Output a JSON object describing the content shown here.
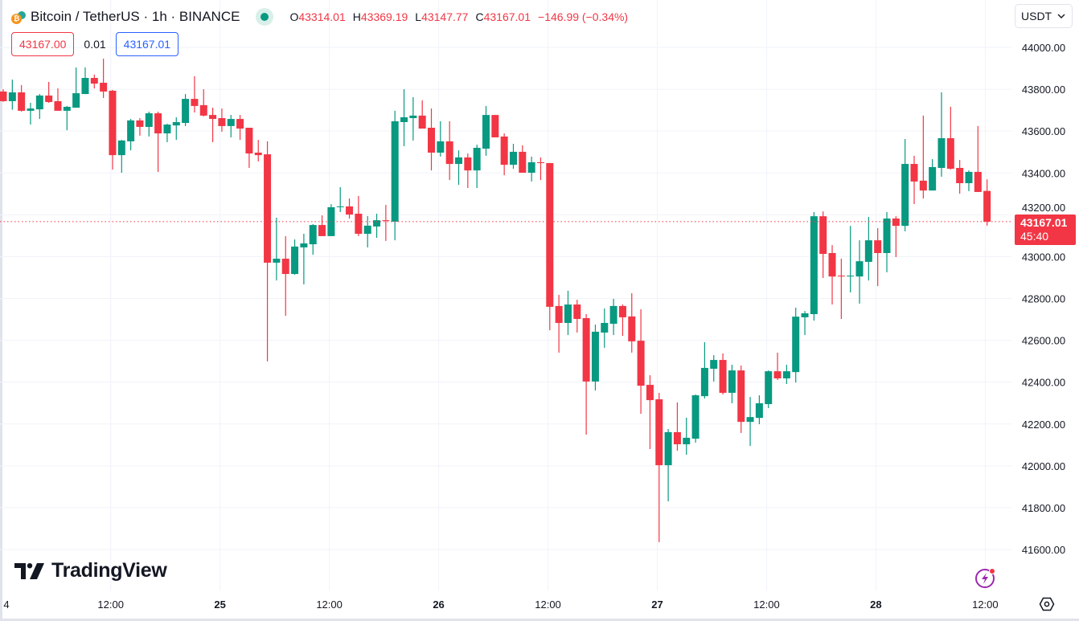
{
  "header": {
    "title": "Bitcoin / TetherUS · 1h · BINANCE",
    "ohlc": [
      {
        "key": "O",
        "value": "43314.01"
      },
      {
        "key": "H",
        "value": "43369.19"
      },
      {
        "key": "L",
        "value": "43147.77"
      },
      {
        "key": "C",
        "value": "43167.01"
      }
    ],
    "change": "−146.99 (−0.34%)"
  },
  "quote": {
    "sell": "43167.00",
    "spread": "0.01",
    "buy": "43167.01"
  },
  "currency_button": {
    "label": "USDT"
  },
  "current_price": {
    "value": "43167.01",
    "countdown": "45:40"
  },
  "branding": {
    "logo_text": "TradingView"
  },
  "colors": {
    "up": "#089981",
    "down": "#f23645",
    "grid": "#f0f3fa",
    "accent": "#2962ff"
  },
  "chart_data": {
    "type": "candlestick",
    "symbol": "BTCUSDT",
    "interval": "1h",
    "ylim": [
      41500,
      44120
    ],
    "y_ticks": [
      "44000.00",
      "43800.00",
      "43600.00",
      "43400.00",
      "43200.00",
      "43000.00",
      "42800.00",
      "42600.00",
      "42400.00",
      "42200.00",
      "42000.00",
      "41800.00",
      "41600.00"
    ],
    "x_ticks": [
      {
        "label": "4",
        "index": 0.3,
        "bold": false
      },
      {
        "label": "12:00",
        "index": 11.8,
        "bold": false
      },
      {
        "label": "25",
        "index": 23.8,
        "bold": true
      },
      {
        "label": "12:00",
        "index": 35.8,
        "bold": false
      },
      {
        "label": "26",
        "index": 47.8,
        "bold": true
      },
      {
        "label": "12:00",
        "index": 59.8,
        "bold": false
      },
      {
        "label": "27",
        "index": 71.8,
        "bold": true
      },
      {
        "label": "12:00",
        "index": 83.8,
        "bold": false
      },
      {
        "label": "28",
        "index": 95.8,
        "bold": true
      },
      {
        "label": "12:00",
        "index": 107.8,
        "bold": false
      }
    ],
    "candles_ohlc": [
      [
        43789,
        43800,
        43740,
        43743
      ],
      [
        43743,
        43846,
        43702,
        43785
      ],
      [
        43785,
        43820,
        43693,
        43697
      ],
      [
        43697,
        43735,
        43631,
        43708
      ],
      [
        43704,
        43777,
        43658,
        43770
      ],
      [
        43770,
        43835,
        43735,
        43739
      ],
      [
        43743,
        43804,
        43697,
        43697
      ],
      [
        43697,
        43720,
        43604,
        43716
      ],
      [
        43712,
        43904,
        43712,
        43781
      ],
      [
        43777,
        43904,
        43777,
        43854
      ],
      [
        43854,
        43870,
        43804,
        43827
      ],
      [
        43831,
        43946,
        43758,
        43789
      ],
      [
        43793,
        43797,
        43416,
        43485
      ],
      [
        43485,
        43558,
        43401,
        43555
      ],
      [
        43551,
        43658,
        43508,
        43651
      ],
      [
        43651,
        43662,
        43578,
        43620
      ],
      [
        43620,
        43693,
        43574,
        43685
      ],
      [
        43685,
        43693,
        43405,
        43589
      ],
      [
        43589,
        43635,
        43547,
        43631
      ],
      [
        43627,
        43666,
        43558,
        43643
      ],
      [
        43639,
        43777,
        43624,
        43754
      ],
      [
        43754,
        43862,
        43689,
        43720
      ],
      [
        43724,
        43800,
        43670,
        43674
      ],
      [
        43677,
        43712,
        43547,
        43658
      ],
      [
        43662,
        43708,
        43597,
        43624
      ],
      [
        43624,
        43677,
        43570,
        43658
      ],
      [
        43658,
        43677,
        43558,
        43612
      ],
      [
        43616,
        43616,
        43424,
        43493
      ],
      [
        43497,
        43558,
        43455,
        43485
      ],
      [
        43489,
        43551,
        42499,
        42971
      ],
      [
        42971,
        43186,
        42886,
        42990
      ],
      [
        42990,
        43098,
        42717,
        42917
      ],
      [
        42917,
        43082,
        42913,
        43048
      ],
      [
        43044,
        43109,
        42867,
        43063
      ],
      [
        43059,
        43155,
        43009,
        43151
      ],
      [
        43151,
        43197,
        43098,
        43098
      ],
      [
        43098,
        43251,
        43098,
        43236
      ],
      [
        43236,
        43332,
        43213,
        43240
      ],
      [
        43240,
        43278,
        43182,
        43201
      ],
      [
        43205,
        43290,
        43098,
        43109
      ],
      [
        43109,
        43194,
        43044,
        43148
      ],
      [
        43144,
        43205,
        43090,
        43174
      ],
      [
        43174,
        43247,
        43075,
        43171
      ],
      [
        43167,
        43697,
        43078,
        43647
      ],
      [
        43643,
        43800,
        43528,
        43666
      ],
      [
        43662,
        43762,
        43555,
        43674
      ],
      [
        43674,
        43747,
        43612,
        43612
      ],
      [
        43616,
        43708,
        43412,
        43497
      ],
      [
        43497,
        43647,
        43478,
        43551
      ],
      [
        43551,
        43647,
        43366,
        43443
      ],
      [
        43443,
        43508,
        43343,
        43474
      ],
      [
        43474,
        43493,
        43328,
        43412
      ],
      [
        43412,
        43535,
        43328,
        43520
      ],
      [
        43516,
        43720,
        43482,
        43677
      ],
      [
        43677,
        43677,
        43570,
        43570
      ],
      [
        43574,
        43589,
        43389,
        43439
      ],
      [
        43439,
        43539,
        43420,
        43501
      ],
      [
        43501,
        43532,
        43401,
        43401
      ],
      [
        43401,
        43478,
        43359,
        43451
      ],
      [
        43451,
        43474,
        43366,
        43447
      ],
      [
        43447,
        43447,
        42648,
        42760
      ],
      [
        42764,
        42817,
        42541,
        42683
      ],
      [
        42683,
        42837,
        42625,
        42771
      ],
      [
        42771,
        42794,
        42637,
        42702
      ],
      [
        42706,
        42725,
        42149,
        42403
      ],
      [
        42403,
        42675,
        42360,
        42641
      ],
      [
        42637,
        42752,
        42564,
        42683
      ],
      [
        42679,
        42798,
        42625,
        42764
      ],
      [
        42764,
        42771,
        42621,
        42710
      ],
      [
        42714,
        42825,
        42541,
        42595
      ],
      [
        42598,
        42748,
        42249,
        42383
      ],
      [
        42387,
        42433,
        42080,
        42314
      ],
      [
        42318,
        42349,
        41635,
        42003
      ],
      [
        42003,
        42176,
        41830,
        42161
      ],
      [
        42161,
        42303,
        42072,
        42103
      ],
      [
        42103,
        42230,
        42053,
        42134
      ],
      [
        42130,
        42341,
        42111,
        42337
      ],
      [
        42333,
        42591,
        42322,
        42468
      ],
      [
        42464,
        42529,
        42403,
        42506
      ],
      [
        42506,
        42537,
        42341,
        42349
      ],
      [
        42349,
        42483,
        42299,
        42456
      ],
      [
        42456,
        42479,
        42157,
        42210
      ],
      [
        42210,
        42329,
        42095,
        42233
      ],
      [
        42229,
        42337,
        42199,
        42299
      ],
      [
        42295,
        42456,
        42276,
        42452
      ],
      [
        42452,
        42541,
        42410,
        42418
      ],
      [
        42418,
        42483,
        42391,
        42452
      ],
      [
        42448,
        42756,
        42398,
        42713
      ],
      [
        42710,
        42740,
        42625,
        42729
      ],
      [
        42725,
        43213,
        42694,
        43193
      ],
      [
        43193,
        43216,
        42898,
        43013
      ],
      [
        43017,
        43055,
        42771,
        42905
      ],
      [
        42909,
        42990,
        42702,
        42905
      ],
      [
        42905,
        43147,
        42829,
        42909
      ],
      [
        42905,
        43078,
        42775,
        42978
      ],
      [
        42975,
        43190,
        42886,
        43078
      ],
      [
        43078,
        43136,
        42859,
        43017
      ],
      [
        43017,
        43213,
        42925,
        43182
      ],
      [
        43182,
        43193,
        42998,
        43147
      ],
      [
        43147,
        43562,
        43121,
        43443
      ],
      [
        43443,
        43482,
        43251,
        43359
      ],
      [
        43363,
        43674,
        43278,
        43316
      ],
      [
        43316,
        43466,
        43316,
        43428
      ],
      [
        43424,
        43785,
        43382,
        43566
      ],
      [
        43566,
        43716,
        43416,
        43420
      ],
      [
        43424,
        43462,
        43301,
        43351
      ],
      [
        43351,
        43412,
        43313,
        43405
      ],
      [
        43405,
        43624,
        43309,
        43309
      ],
      [
        43314.01,
        43369.19,
        43147.77,
        43167.01
      ]
    ],
    "last_price": 43167.01
  }
}
